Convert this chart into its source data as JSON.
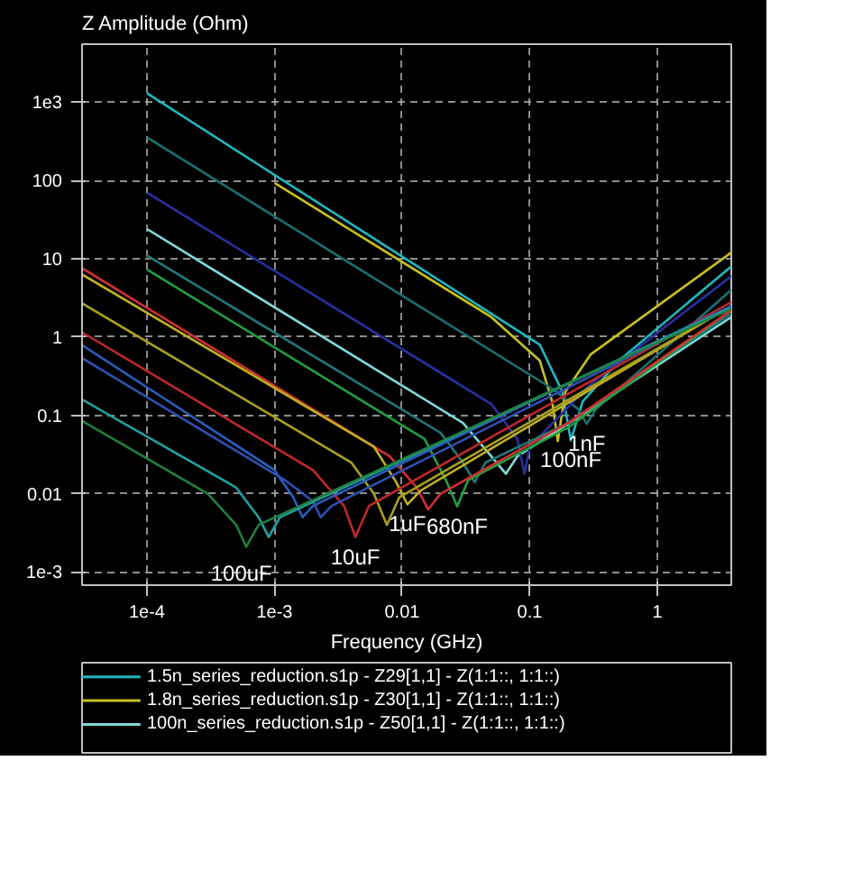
{
  "chart_data": {
    "type": "line",
    "xlabel": "Frequency (GHz)",
    "ylabel": "Z Amplitude (Ohm)",
    "log": "xy",
    "grid": true,
    "legend": "bottom",
    "line_style": "solid",
    "xlim": [
      3.1e-05,
      3.8
    ],
    "ylim": [
      0.00068,
      5500
    ],
    "xticks": [
      {
        "value": 0.0001,
        "label": "1e-4"
      },
      {
        "value": 0.001,
        "label": "1e-3"
      },
      0.01,
      0.1,
      1
    ],
    "yticks": [
      {
        "value": 0.001,
        "label": "1e-3"
      },
      0.01,
      0.1,
      1,
      10,
      100,
      {
        "value": 1000,
        "label": "1e3"
      }
    ],
    "series": [
      {
        "name": "1.5n_series_reduction.s1p - Z29[1,1] - Z(1:1::, 1:1::)",
        "color": "#1fb8c0",
        "x": [
          0.0001,
          0.12,
          0.18,
          0.21,
          0.26,
          0.5,
          3.8
        ],
        "values": [
          1300,
          0.8,
          0.2,
          0.048,
          0.15,
          0.5,
          8
        ]
      },
      {
        "name": "1.8n_series_reduction.s1p - Z30[1,1] - Z(1:1::, 1:1::)",
        "color": "#c8c020",
        "x": [
          0.001,
          0.05,
          0.12,
          0.15,
          0.166,
          0.19,
          0.3,
          3.8
        ],
        "values": [
          93,
          1.8,
          0.5,
          0.15,
          0.047,
          0.2,
          0.6,
          12
        ]
      },
      {
        "name": "100n_series_reduction.s1p - Z50[1,1] - Z(1:1::, 1:1::)",
        "color": "#80d8d8",
        "x": [
          0.0001,
          0.03,
          0.05,
          0.065,
          0.08,
          0.3,
          3.8
        ],
        "values": [
          24,
          0.08,
          0.03,
          0.018,
          0.03,
          0.12,
          1.8
        ]
      },
      {
        "color": "#1a7070",
        "x": [
          0.0001,
          0.15,
          0.24,
          0.28,
          0.33,
          3.8
        ],
        "values": [
          355,
          0.22,
          0.12,
          0.078,
          0.12,
          4
        ]
      },
      {
        "color": "#2830a0",
        "x": [
          0.0001,
          0.05,
          0.08,
          0.091,
          0.1,
          0.3,
          3.8
        ],
        "values": [
          70,
          0.14,
          0.05,
          0.018,
          0.04,
          0.25,
          6
        ]
      },
      {
        "color": "#207878",
        "x": [
          0.0001,
          0.02,
          0.03,
          0.037,
          0.045,
          0.2,
          3.8
        ],
        "values": [
          11,
          0.06,
          0.025,
          0.014,
          0.025,
          0.08,
          2
        ]
      },
      {
        "color": "#20a040",
        "x": [
          0.0001,
          0.015,
          0.022,
          0.027,
          0.033,
          0.2,
          3.8
        ],
        "values": [
          7.3,
          0.05,
          0.015,
          0.0069,
          0.015,
          0.07,
          2.2
        ]
      },
      {
        "color": "#d03030",
        "x": [
          3.1e-05,
          0.008,
          0.013,
          0.016,
          0.02,
          0.2,
          3.8
        ],
        "values": [
          7.6,
          0.03,
          0.012,
          0.0063,
          0.01,
          0.08,
          2.2
        ]
      },
      {
        "color": "#c0b020",
        "x": [
          3.1e-05,
          0.006,
          0.009,
          0.011,
          0.014,
          3.8
        ],
        "values": [
          6.3,
          0.04,
          0.014,
          0.0073,
          0.011,
          2.5
        ]
      },
      {
        "color": "#a8a020",
        "x": [
          3.1e-05,
          0.004,
          0.006,
          0.0076,
          0.0095,
          3.8
        ],
        "values": [
          2.7,
          0.025,
          0.01,
          0.004,
          0.009,
          2.5
        ]
      },
      {
        "color": "#c02828",
        "x": [
          3.1e-05,
          0.002,
          0.0035,
          0.0043,
          0.0055,
          3.8
        ],
        "values": [
          1.15,
          0.02,
          0.007,
          0.0028,
          0.007,
          2.8
        ]
      },
      {
        "color": "#2860c0",
        "x": [
          3.1e-05,
          0.001,
          0.0014,
          0.00166,
          0.002,
          3.8
        ],
        "values": [
          0.79,
          0.02,
          0.009,
          0.005,
          0.007,
          2.5
        ]
      },
      {
        "color": "#3050b0",
        "x": [
          3.1e-05,
          0.0012,
          0.002,
          0.0023,
          0.0028,
          3.8
        ],
        "values": [
          0.54,
          0.015,
          0.008,
          0.005,
          0.007,
          2.5
        ]
      },
      {
        "color": "#20a0a0",
        "x": [
          3.1e-05,
          0.0005,
          0.00075,
          0.0009,
          0.0011,
          3.8
        ],
        "values": [
          0.16,
          0.012,
          0.005,
          0.0028,
          0.005,
          2.4
        ]
      },
      {
        "color": "#208040",
        "x": [
          3.1e-05,
          0.0003,
          0.0005,
          0.0006,
          0.00075,
          3.8
        ],
        "values": [
          0.085,
          0.01,
          0.004,
          0.0021,
          0.004,
          2.3
        ]
      }
    ],
    "annotations": [
      {
        "text": "100uF",
        "x": 0.00055,
        "y": 0.0017
      },
      {
        "text": "10uF",
        "x": 0.0043,
        "y": 0.0028
      },
      {
        "text": "1uF",
        "x": 0.011,
        "y": 0.0073
      },
      {
        "text": "680nF",
        "x": 0.027,
        "y": 0.0069
      },
      {
        "text": "100nF",
        "x": 0.21,
        "y": 0.048
      },
      {
        "text": "1nF",
        "x": 0.28,
        "y": 0.078
      }
    ]
  }
}
